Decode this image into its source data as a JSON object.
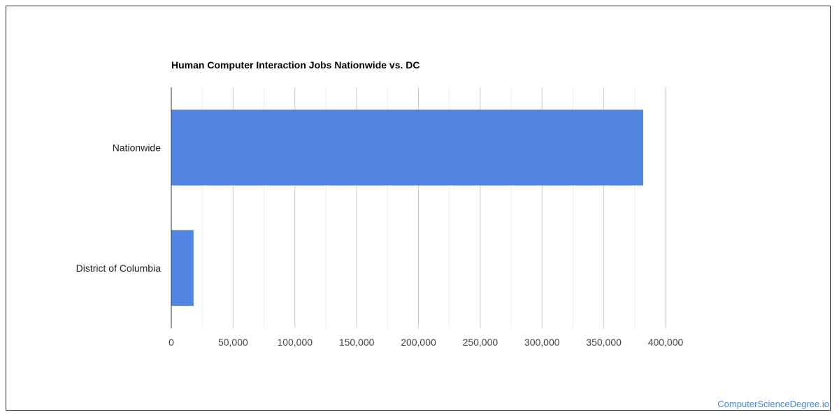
{
  "chart_data": {
    "type": "bar",
    "orientation": "horizontal",
    "title": "Human Computer Interaction Jobs Nationwide vs. DC",
    "xlabel": "",
    "ylabel": "",
    "categories": [
      "Nationwide",
      "District of Columbia"
    ],
    "values": [
      381900,
      18000
    ],
    "xlim": [
      0,
      400000
    ],
    "x_ticks": [
      0,
      50000,
      100000,
      150000,
      200000,
      250000,
      300000,
      350000,
      400000
    ],
    "x_tick_labels": [
      "0",
      "50,000",
      "100,000",
      "150,000",
      "200,000",
      "250,000",
      "300,000",
      "350,000",
      "400,000"
    ],
    "grid": true,
    "legend": "none",
    "bar_color": "#5286e2"
  },
  "footer": {
    "source_label": "ComputerScienceDegree.io"
  }
}
